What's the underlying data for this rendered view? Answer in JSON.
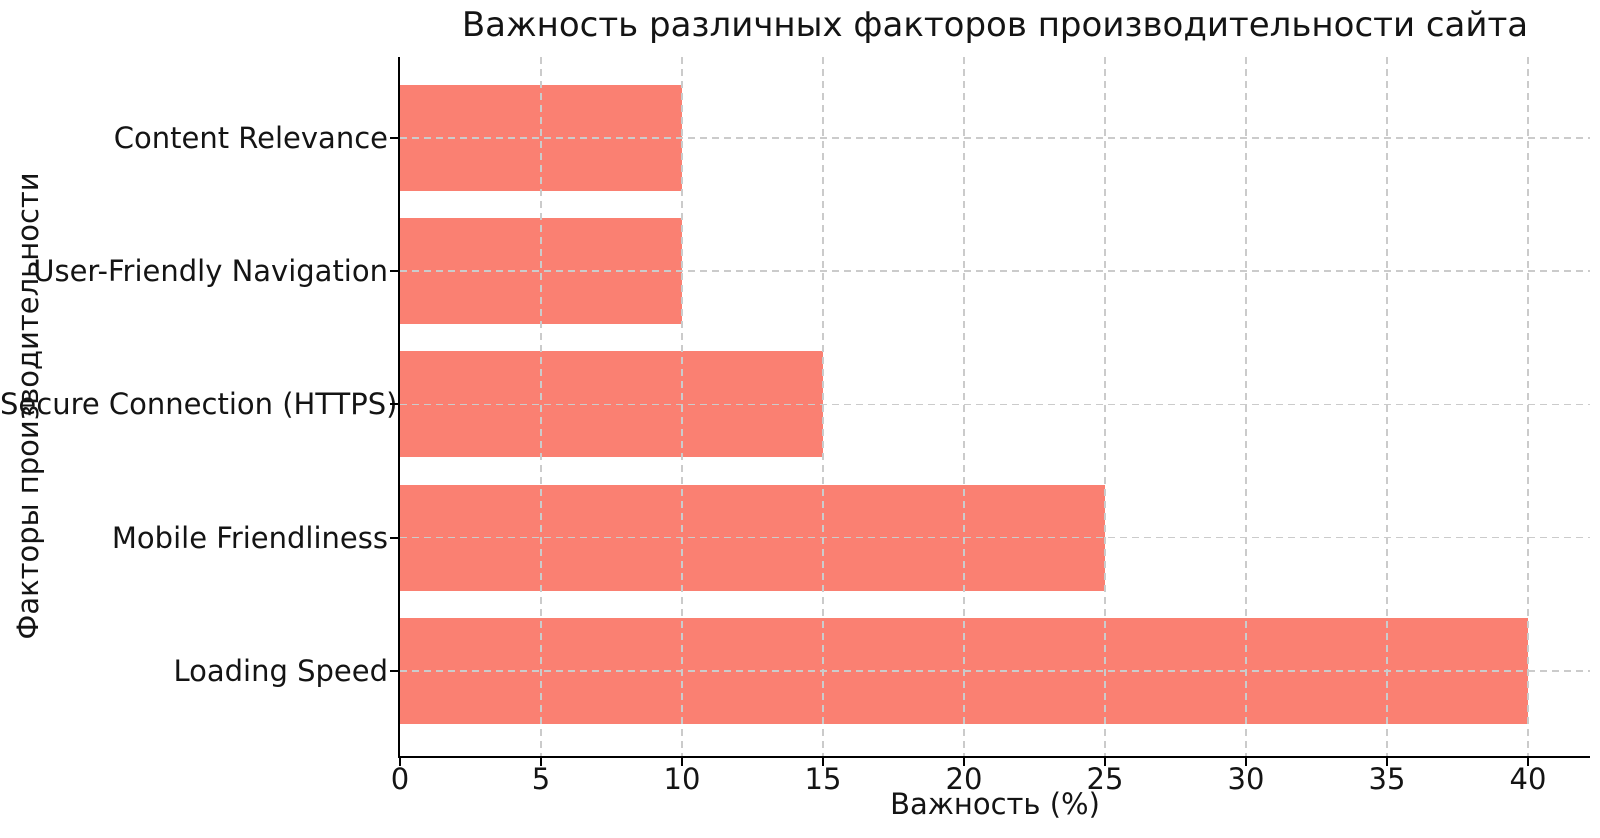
{
  "chart_data": {
    "type": "bar",
    "orientation": "horizontal",
    "title": "Важность различных факторов производительности сайта",
    "xlabel": "Важность (%)",
    "ylabel": "Факторы производительности",
    "categories_top_to_bottom": [
      "Content Relevance",
      "User-Friendly Navigation",
      "Secure Connection (HTTPS)",
      "Mobile Friendliness",
      "Loading Speed"
    ],
    "values": [
      10,
      10,
      15,
      25,
      40
    ],
    "xticks": [
      0,
      5,
      10,
      15,
      20,
      25,
      30,
      35,
      40
    ],
    "xlim": [
      0,
      42.2
    ],
    "bar_color": "#FA8072",
    "grid": true,
    "grid_color": "#cbcbcb",
    "grid_style": "dashed",
    "spine_color": "#000000",
    "background_color": "#ffffff",
    "legend": "none"
  }
}
